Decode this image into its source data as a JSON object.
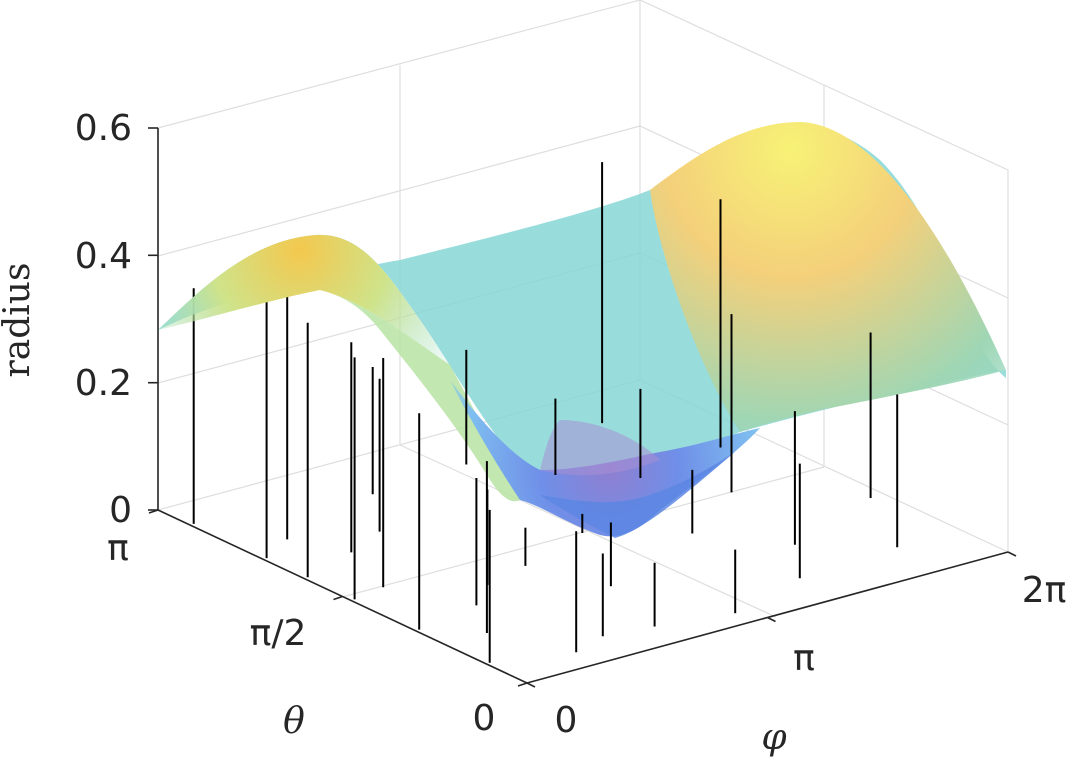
{
  "chart_data": {
    "type": "surface3d",
    "title": "",
    "zlabel": "radius",
    "xlabel": "φ",
    "ylabel": "θ",
    "x_range": [
      0,
      6.2832
    ],
    "y_range": [
      0,
      3.1416
    ],
    "zlim": [
      0,
      0.6
    ],
    "grid": true,
    "colormap": "parula",
    "x_ticks": [
      {
        "value": 0,
        "label": "0"
      },
      {
        "value": 3.1416,
        "label": "π"
      },
      {
        "value": 6.2832,
        "label": "2π"
      }
    ],
    "y_ticks": [
      {
        "value": 0,
        "label": "0"
      },
      {
        "value": 1.5708,
        "label": "π/2"
      },
      {
        "value": 3.1416,
        "label": "π"
      }
    ],
    "z_ticks": [
      {
        "value": 0,
        "label": "0"
      },
      {
        "value": 0.2,
        "label": "0.2"
      },
      {
        "value": 0.4,
        "label": "0.4"
      },
      {
        "value": 0.6,
        "label": "0.6"
      }
    ],
    "surface": {
      "function": "radius(θ,φ) ≈ 0.282 + 0.20·sin²θ·cos2φ + 0.05·cos2θ",
      "max": 0.58,
      "min": 0.03
    },
    "stems": [
      {
        "phi": 0.05,
        "theta": 2.87,
        "radius": 0.37
      },
      {
        "phi": 0.05,
        "theta": 2.25,
        "radius": 0.41
      },
      {
        "phi": 0.05,
        "theta": 1.9,
        "radius": 0.4
      },
      {
        "phi": 0.05,
        "theta": 1.5,
        "radius": 0.38
      },
      {
        "phi": 0.05,
        "theta": 0.95,
        "radius": 0.34
      },
      {
        "phi": 0.05,
        "theta": 0.35,
        "radius": 0.24
      },
      {
        "phi": 0.55,
        "theta": 2.4,
        "radius": 0.4
      },
      {
        "phi": 0.5,
        "theta": 1.55,
        "radius": 0.36
      },
      {
        "phi": 0.55,
        "theta": 0.7,
        "radius": 0.27
      },
      {
        "phi": 0.85,
        "theta": 2.05,
        "radius": 0.33
      },
      {
        "phi": 0.95,
        "theta": 1.05,
        "radius": 0.2
      },
      {
        "phi": 0.95,
        "theta": 0.2,
        "radius": 0.19
      },
      {
        "phi": 1.45,
        "theta": 2.2,
        "radius": 0.24
      },
      {
        "phi": 1.4,
        "theta": 1.25,
        "radius": 0.15
      },
      {
        "phi": 1.45,
        "theta": 0.3,
        "radius": 0.13
      },
      {
        "phi": 2.05,
        "theta": 2.65,
        "radius": 0.2
      },
      {
        "phi": 2.05,
        "theta": 1.35,
        "radius": 0.06
      },
      {
        "phi": 2.05,
        "theta": 0.25,
        "radius": 0.1
      },
      {
        "phi": 2.4,
        "theta": 0.85,
        "radius": 0.1
      },
      {
        "phi": 2.95,
        "theta": 0.15,
        "radius": 0.1
      },
      {
        "phi": 3.1,
        "theta": 1.55,
        "radius": 0.03
      },
      {
        "phi": 3.35,
        "theta": 2.7,
        "radius": 0.18
      },
      {
        "phi": 3.9,
        "theta": 2.3,
        "radius": 0.12
      },
      {
        "phi": 4.0,
        "theta": 1.2,
        "radius": 0.1
      },
      {
        "phi": 4.1,
        "theta": 0.35,
        "radius": 0.18
      },
      {
        "phi": 4.55,
        "theta": 2.0,
        "radius": 0.14
      },
      {
        "phi": 4.65,
        "theta": 0.75,
        "radius": 0.21
      },
      {
        "phi": 5.05,
        "theta": 1.55,
        "radius": 0.28
      },
      {
        "phi": 5.2,
        "theta": 2.75,
        "radius": 0.41
      },
      {
        "phi": 5.45,
        "theta": 0.4,
        "radius": 0.24
      },
      {
        "phi": 5.75,
        "theta": 2.1,
        "radius": 0.39
      },
      {
        "phi": 6.1,
        "theta": 1.05,
        "radius": 0.26
      }
    ]
  }
}
